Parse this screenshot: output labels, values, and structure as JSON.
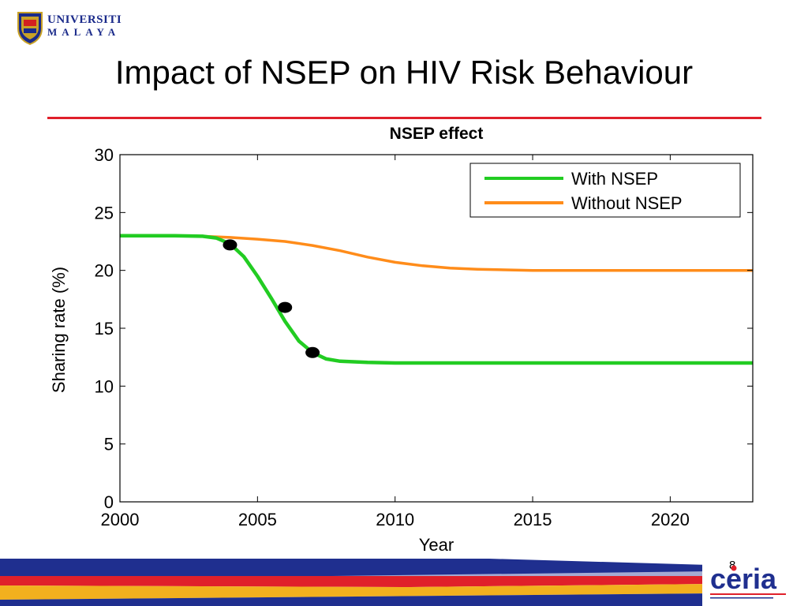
{
  "header": {
    "logo_line1": "UNIVERSITI",
    "logo_line2": "MALAYA",
    "title": "Impact of NSEP on HIV Risk Behaviour"
  },
  "footer": {
    "page_number": "8",
    "brand": "ceria"
  },
  "colors": {
    "with_nsep": "#22cc22",
    "without_nsep": "#ff8c1a",
    "title_rule": "#e0202a",
    "marker": "#000000"
  },
  "chart_data": {
    "type": "line",
    "title": "NSEP effect",
    "xlabel": "Year",
    "ylabel": "Sharing rate (%)",
    "xlim": [
      2000,
      2023
    ],
    "ylim": [
      0,
      30
    ],
    "xticks": [
      2000,
      2005,
      2010,
      2015,
      2020
    ],
    "yticks": [
      0,
      5,
      10,
      15,
      20,
      25,
      30
    ],
    "legend_position": "top-right",
    "grid": false,
    "series": [
      {
        "name": "With NSEP",
        "color": "#22cc22",
        "x": [
          2000,
          2002,
          2003,
          2003.5,
          2004,
          2004.5,
          2005,
          2005.5,
          2006,
          2006.5,
          2007,
          2007.5,
          2008,
          2009,
          2010,
          2012,
          2015,
          2020,
          2023
        ],
        "y": [
          23,
          23,
          22.95,
          22.8,
          22.3,
          21.2,
          19.5,
          17.6,
          15.6,
          13.9,
          12.9,
          12.35,
          12.15,
          12.05,
          12.0,
          12.0,
          12.0,
          12.0,
          12.0
        ]
      },
      {
        "name": "Without NSEP",
        "color": "#ff8c1a",
        "x": [
          2000,
          2002,
          2003,
          2004,
          2005,
          2006,
          2007,
          2008,
          2009,
          2010,
          2011,
          2012,
          2013,
          2015,
          2020,
          2023
        ],
        "y": [
          23,
          23,
          22.95,
          22.85,
          22.7,
          22.5,
          22.15,
          21.7,
          21.15,
          20.7,
          20.4,
          20.2,
          20.1,
          20.0,
          20.0,
          20.0
        ]
      }
    ],
    "markers": [
      {
        "x": 2004,
        "y": 22.2
      },
      {
        "x": 2006,
        "y": 16.8
      },
      {
        "x": 2007,
        "y": 12.9
      }
    ]
  }
}
